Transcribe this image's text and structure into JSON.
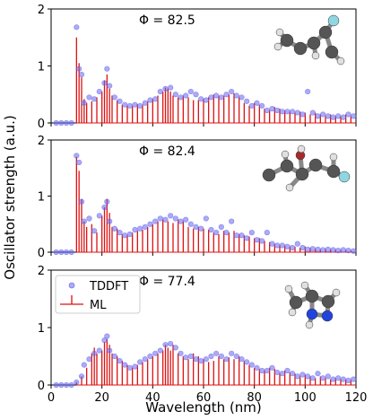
{
  "ylabel": "Oscillator strength (a.u.)",
  "xlabel": "Wavelength (nm)",
  "colors": {
    "tddft": "#6666ee",
    "ml": "#dd1111"
  },
  "legend": {
    "tddft": "TDDFT",
    "ml": "ML"
  },
  "chart_data": [
    {
      "type": "bar",
      "phi_label": "Φ = 82.5",
      "xlim": [
        0,
        120
      ],
      "ylim": [
        0,
        2
      ],
      "xticks": [
        0,
        20,
        40,
        60,
        80,
        100,
        120
      ],
      "yticks": [
        0,
        1,
        2
      ],
      "ml": {
        "x": [
          10,
          11,
          12,
          13,
          14,
          16,
          18,
          20,
          21,
          22,
          23,
          24,
          26,
          28,
          30,
          32,
          34,
          36,
          38,
          40,
          42,
          44,
          45,
          46,
          47,
          48,
          50,
          52,
          54,
          56,
          58,
          60,
          62,
          64,
          66,
          68,
          70,
          72,
          74,
          76,
          78,
          80,
          82,
          84,
          86,
          88,
          90,
          92,
          94,
          96,
          98,
          100,
          102,
          104,
          106,
          108,
          110,
          112,
          114,
          116,
          118
        ],
        "y": [
          1.5,
          1.05,
          0.8,
          0.42,
          0.35,
          0.38,
          0.45,
          0.55,
          0.75,
          0.85,
          0.6,
          0.48,
          0.4,
          0.32,
          0.3,
          0.3,
          0.33,
          0.32,
          0.38,
          0.42,
          0.48,
          0.55,
          0.62,
          0.6,
          0.55,
          0.48,
          0.45,
          0.48,
          0.45,
          0.4,
          0.4,
          0.42,
          0.45,
          0.5,
          0.48,
          0.48,
          0.5,
          0.52,
          0.45,
          0.35,
          0.3,
          0.35,
          0.32,
          0.25,
          0.22,
          0.28,
          0.25,
          0.22,
          0.2,
          0.18,
          0.2,
          0.18,
          0.15,
          0.18,
          0.15,
          0.12,
          0.15,
          0.12,
          0.12,
          0.15,
          0.12
        ]
      },
      "tddft": {
        "x": [
          2,
          4,
          6,
          8,
          10,
          11,
          12,
          13,
          15,
          17,
          19,
          21,
          22,
          23,
          25,
          27,
          29,
          31,
          33,
          35,
          37,
          39,
          41,
          43,
          45,
          47,
          49,
          51,
          53,
          55,
          57,
          59,
          61,
          63,
          65,
          67,
          69,
          71,
          73,
          75,
          77,
          79,
          81,
          83,
          85,
          87,
          89,
          91,
          93,
          95,
          97,
          99,
          101,
          103,
          105,
          107,
          109,
          111,
          113,
          115,
          117,
          119
        ],
        "y": [
          0,
          0,
          0,
          0,
          1.68,
          0.95,
          0.85,
          0.35,
          0.45,
          0.42,
          0.55,
          0.7,
          0.95,
          0.65,
          0.45,
          0.38,
          0.32,
          0.3,
          0.32,
          0.3,
          0.35,
          0.4,
          0.42,
          0.55,
          0.6,
          0.62,
          0.5,
          0.45,
          0.48,
          0.55,
          0.5,
          0.42,
          0.4,
          0.45,
          0.48,
          0.45,
          0.5,
          0.55,
          0.48,
          0.45,
          0.38,
          0.3,
          0.35,
          0.3,
          0.22,
          0.25,
          0.22,
          0.2,
          0.2,
          0.2,
          0.18,
          0.15,
          0.55,
          0.18,
          0.12,
          0.15,
          0.12,
          0.1,
          0.12,
          0.1,
          0.15,
          0.12
        ]
      }
    },
    {
      "type": "bar",
      "phi_label": "Φ = 82.4",
      "xlim": [
        0,
        120
      ],
      "ylim": [
        0,
        2
      ],
      "xticks": [
        0,
        20,
        40,
        60,
        80,
        100,
        120
      ],
      "yticks": [
        0,
        1,
        2
      ],
      "ml": {
        "x": [
          10,
          11,
          12,
          13,
          14,
          16,
          18,
          20,
          21,
          22,
          23,
          24,
          26,
          28,
          30,
          32,
          34,
          36,
          38,
          40,
          42,
          44,
          46,
          48,
          50,
          52,
          54,
          56,
          58,
          60,
          62,
          64,
          66,
          68,
          70,
          72,
          74,
          76,
          78,
          80,
          82,
          84,
          86,
          88,
          90,
          92,
          94,
          96,
          98,
          100,
          102,
          104,
          106,
          108,
          110,
          112,
          114,
          116,
          118
        ],
        "y": [
          1.7,
          1.45,
          0.95,
          0.55,
          0.45,
          0.5,
          0.35,
          0.65,
          0.8,
          0.95,
          0.7,
          0.45,
          0.42,
          0.32,
          0.3,
          0.35,
          0.38,
          0.4,
          0.45,
          0.5,
          0.55,
          0.58,
          0.55,
          0.52,
          0.58,
          0.55,
          0.45,
          0.42,
          0.45,
          0.42,
          0.4,
          0.35,
          0.32,
          0.38,
          0.35,
          0.38,
          0.32,
          0.3,
          0.28,
          0.25,
          0.25,
          0.2,
          0.18,
          0.15,
          0.12,
          0.12,
          0.1,
          0.1,
          0.08,
          0.1,
          0.08,
          0.06,
          0.05,
          0.06,
          0.05,
          0.05,
          0.04,
          0.04,
          0.03
        ]
      },
      "tddft": {
        "x": [
          2,
          4,
          6,
          8,
          10,
          11,
          12,
          13,
          15,
          17,
          19,
          21,
          22,
          23,
          25,
          27,
          29,
          31,
          33,
          35,
          37,
          39,
          41,
          43,
          45,
          47,
          49,
          51,
          53,
          55,
          57,
          59,
          61,
          63,
          65,
          67,
          69,
          71,
          73,
          75,
          77,
          79,
          81,
          83,
          85,
          87,
          89,
          91,
          93,
          95,
          97,
          99,
          101,
          103,
          105,
          107,
          109,
          111,
          113,
          115,
          117,
          119
        ],
        "y": [
          0,
          0,
          0,
          0,
          1.72,
          1.6,
          0.9,
          0.55,
          0.6,
          0.38,
          0.65,
          0.8,
          0.9,
          0.55,
          0.42,
          0.35,
          0.3,
          0.32,
          0.4,
          0.42,
          0.45,
          0.5,
          0.55,
          0.6,
          0.58,
          0.65,
          0.6,
          0.55,
          0.58,
          0.5,
          0.45,
          0.42,
          0.6,
          0.4,
          0.35,
          0.45,
          0.35,
          0.55,
          0.3,
          0.3,
          0.25,
          0.35,
          0.22,
          0.2,
          0.35,
          0.15,
          0.12,
          0.12,
          0.1,
          0.08,
          0.15,
          0.08,
          0.05,
          0.06,
          0.05,
          0.04,
          0.05,
          0.04,
          0.03,
          0.04,
          0.03,
          0.02
        ]
      }
    },
    {
      "type": "bar",
      "phi_label": "Φ = 77.4",
      "xlim": [
        0,
        120
      ],
      "ylim": [
        0,
        2
      ],
      "xticks": [
        0,
        20,
        40,
        60,
        80,
        100,
        120
      ],
      "yticks": [
        0,
        1,
        2
      ],
      "legend_location": "top-left",
      "ml": {
        "x": [
          10,
          12,
          14,
          16,
          17,
          18,
          20,
          21,
          22,
          23,
          24,
          26,
          28,
          30,
          32,
          34,
          36,
          38,
          40,
          42,
          44,
          45,
          46,
          47,
          48,
          50,
          52,
          54,
          56,
          58,
          60,
          62,
          64,
          66,
          68,
          70,
          72,
          74,
          76,
          78,
          80,
          82,
          84,
          86,
          88,
          90,
          92,
          94,
          96,
          98,
          100,
          102,
          104,
          106,
          108,
          110,
          112,
          114,
          116,
          118
        ],
        "y": [
          0.05,
          0.15,
          0.3,
          0.55,
          0.65,
          0.55,
          0.6,
          0.75,
          0.8,
          0.7,
          0.55,
          0.5,
          0.42,
          0.35,
          0.3,
          0.35,
          0.4,
          0.45,
          0.5,
          0.55,
          0.6,
          0.7,
          0.65,
          0.6,
          0.7,
          0.55,
          0.5,
          0.45,
          0.55,
          0.5,
          0.45,
          0.4,
          0.42,
          0.5,
          0.45,
          0.48,
          0.45,
          0.5,
          0.42,
          0.35,
          0.3,
          0.28,
          0.25,
          0.3,
          0.28,
          0.2,
          0.25,
          0.22,
          0.2,
          0.15,
          0.18,
          0.15,
          0.12,
          0.15,
          0.12,
          0.1,
          0.12,
          0.1,
          0.1,
          0.08
        ]
      },
      "tddft": {
        "x": [
          2,
          4,
          6,
          8,
          10,
          12,
          13,
          15,
          17,
          19,
          21,
          22,
          23,
          25,
          27,
          29,
          31,
          33,
          35,
          37,
          39,
          41,
          43,
          45,
          47,
          49,
          51,
          53,
          55,
          57,
          59,
          61,
          63,
          65,
          67,
          69,
          71,
          73,
          75,
          77,
          79,
          81,
          83,
          85,
          87,
          89,
          91,
          93,
          95,
          97,
          99,
          101,
          103,
          105,
          107,
          109,
          111,
          113,
          115,
          117,
          119
        ],
        "y": [
          0,
          0,
          0,
          0,
          0.05,
          0.15,
          0.35,
          0.45,
          0.55,
          0.6,
          0.78,
          0.85,
          0.6,
          0.5,
          0.42,
          0.35,
          0.3,
          0.32,
          0.4,
          0.45,
          0.5,
          0.55,
          0.6,
          0.7,
          0.72,
          0.65,
          0.55,
          0.48,
          0.5,
          0.45,
          0.42,
          0.45,
          0.5,
          0.55,
          0.5,
          0.45,
          0.55,
          0.5,
          0.45,
          0.4,
          0.35,
          0.3,
          0.25,
          0.25,
          0.3,
          0.22,
          0.2,
          0.25,
          0.2,
          0.15,
          0.18,
          0.15,
          0.12,
          0.2,
          0.12,
          0.15,
          0.1,
          0.12,
          0.1,
          0.08,
          0.1
        ]
      }
    }
  ]
}
